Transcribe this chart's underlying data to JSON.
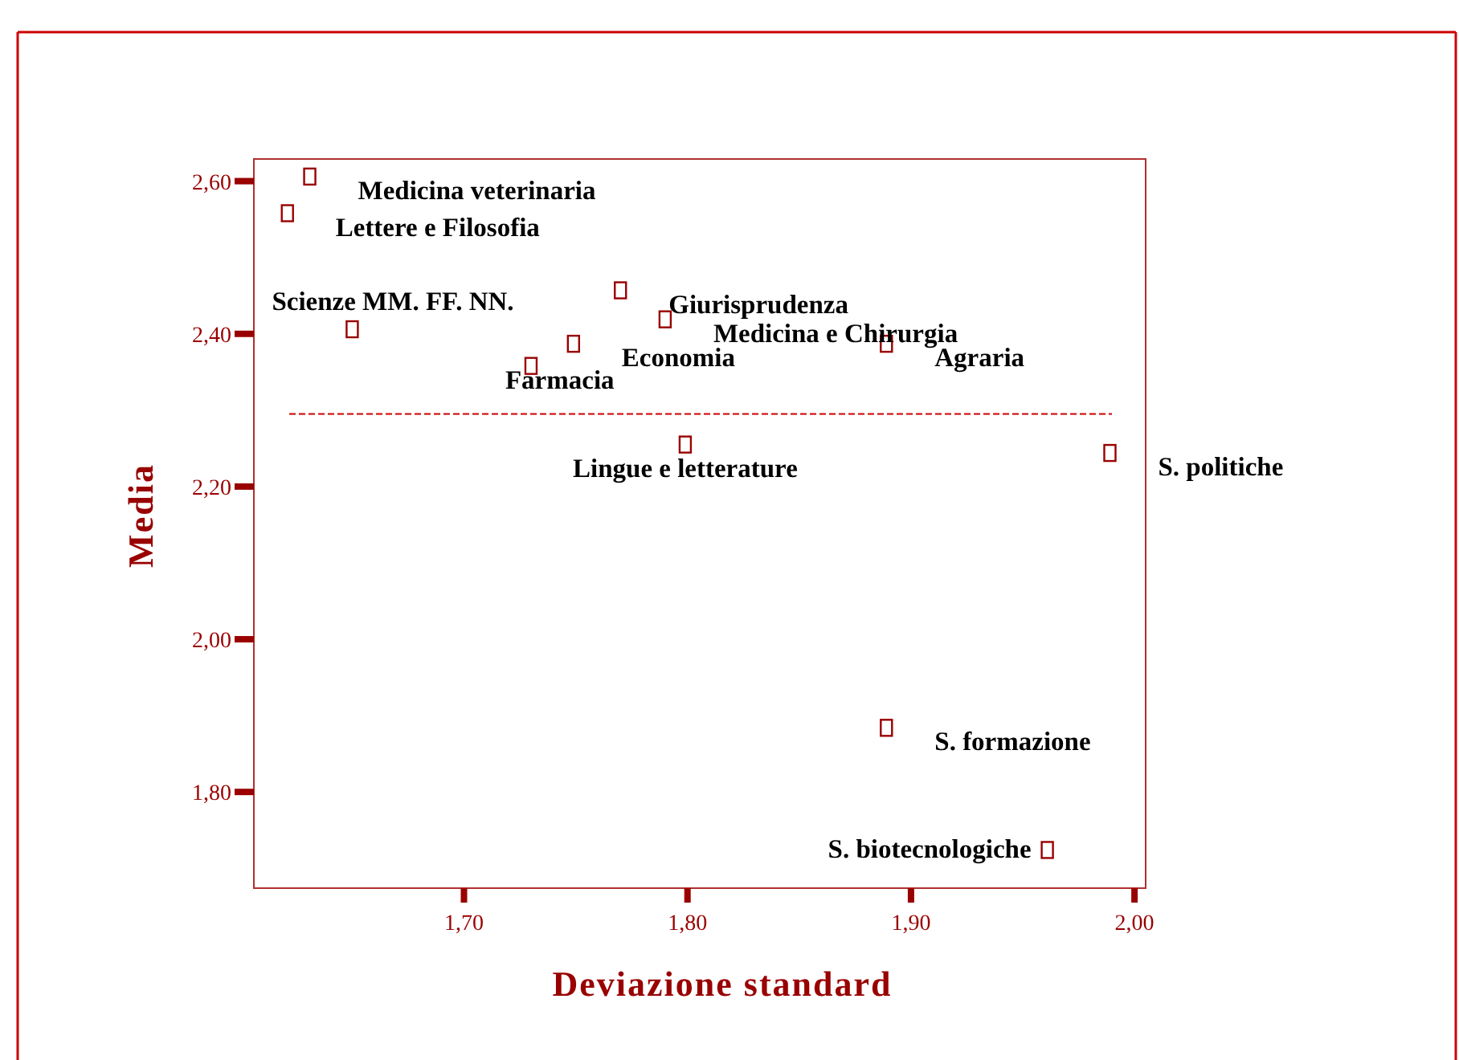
{
  "chart_data": {
    "type": "scatter",
    "xlabel": "Deviazione standard",
    "ylabel": "Media",
    "xlim": [
      1.606,
      2.005
    ],
    "ylim": [
      1.674,
      2.629
    ],
    "xticks": [
      {
        "value": 1.7,
        "label": "1,70"
      },
      {
        "value": 1.8,
        "label": "1,80"
      },
      {
        "value": 1.9,
        "label": "1,90"
      },
      {
        "value": 2.0,
        "label": "2,00"
      }
    ],
    "yticks": [
      {
        "value": 1.8,
        "label": "1,80"
      },
      {
        "value": 2.0,
        "label": "2,00"
      },
      {
        "value": 2.2,
        "label": "2,20"
      },
      {
        "value": 2.4,
        "label": "2,40"
      },
      {
        "value": 2.6,
        "label": "2,60"
      }
    ],
    "marker": "square",
    "series": [
      {
        "color": "#990000",
        "x": [
          1.631,
          1.621,
          1.77,
          1.79,
          1.65,
          1.749,
          1.889,
          1.73,
          1.799,
          1.989,
          1.889,
          1.961
        ],
        "values": [
          2.606,
          2.558,
          2.457,
          2.419,
          2.406,
          2.387,
          2.387,
          2.358,
          2.255,
          2.244,
          1.884,
          1.724
        ]
      }
    ],
    "annotations": [
      {
        "text": "Medicina veterinaria",
        "x": 1.631,
        "y": 2.606
      },
      {
        "text": "Lettere e Filosofia",
        "x": 1.621,
        "y": 2.558
      },
      {
        "text": "Giurisprudenza",
        "x": 1.77,
        "y": 2.457
      },
      {
        "text": "Medicina e Chirurgia",
        "x": 1.79,
        "y": 2.419
      },
      {
        "text": "Scienze MM. FF. NN.",
        "x": 1.65,
        "y": 2.406
      },
      {
        "text": "Economia",
        "x": 1.749,
        "y": 2.387
      },
      {
        "text": "Agraria",
        "x": 1.889,
        "y": 2.387
      },
      {
        "text": "Farmacia",
        "x": 1.73,
        "y": 2.358
      },
      {
        "text": "Lingue e letterature",
        "x": 1.799,
        "y": 2.255
      },
      {
        "text": "S. politiche",
        "x": 1.989,
        "y": 2.244
      },
      {
        "text": "S. formazione",
        "x": 1.889,
        "y": 1.884
      },
      {
        "text": "S. biotecnologiche",
        "x": 1.961,
        "y": 1.724
      }
    ],
    "ref_lines": [
      {
        "axis": "y",
        "value": 2.295,
        "color": "#cc0000",
        "line_style": "dashed"
      }
    ]
  }
}
